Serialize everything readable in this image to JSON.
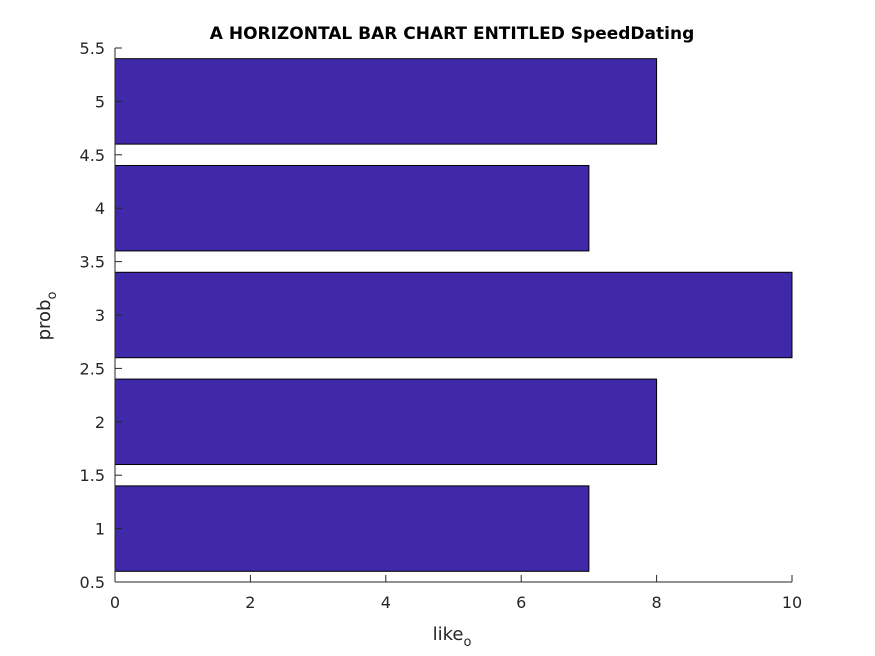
{
  "chart_data": {
    "type": "bar",
    "orientation": "horizontal",
    "title": "A HORIZONTAL BAR CHART ENTITLED SpeedDating",
    "xlabel": {
      "base": "like",
      "sub": "o"
    },
    "ylabel": {
      "base": "prob",
      "sub": "o"
    },
    "categories": [
      1,
      2,
      3,
      4,
      5
    ],
    "values": [
      7,
      8,
      10,
      7,
      8
    ],
    "bar_color": "#3f29a8",
    "xlim": [
      0,
      10
    ],
    "ylim": [
      0.5,
      5.5
    ],
    "xticks": [
      "0",
      "2",
      "4",
      "6",
      "8",
      "10"
    ],
    "yticks": [
      "0.5",
      "1",
      "1.5",
      "2",
      "2.5",
      "3",
      "3.5",
      "4",
      "4.5",
      "5",
      "5.5"
    ],
    "bar_width": 0.8,
    "grid": false,
    "legend": "none"
  }
}
